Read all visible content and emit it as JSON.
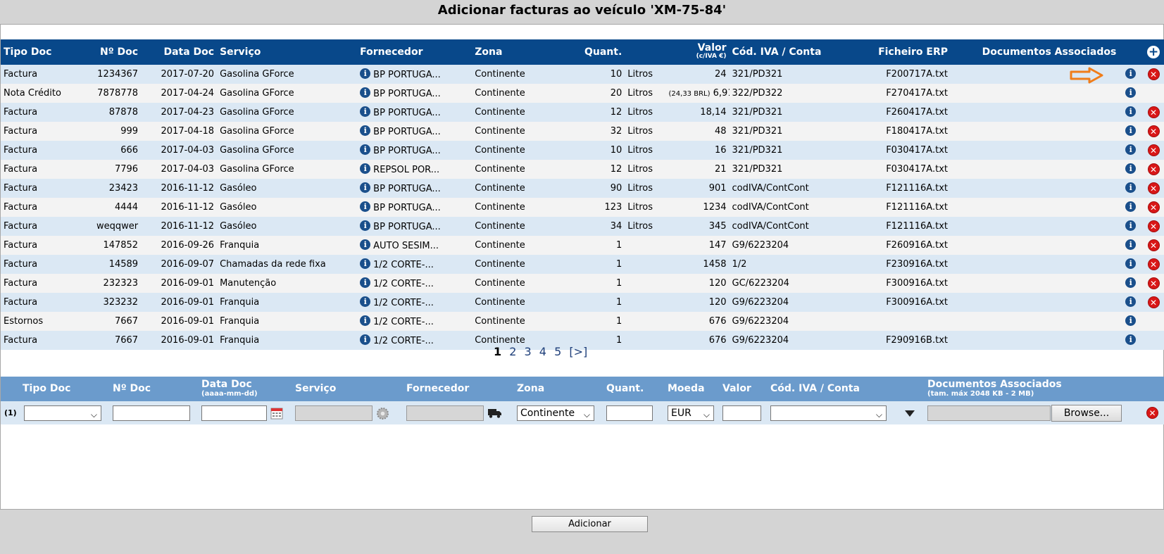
{
  "title": "Adicionar facturas ao veículo 'XM-75-84'",
  "colors": {
    "header": "#08488a",
    "row_odd": "#dbe8f4",
    "row_even": "#f3f3f3",
    "form_header": "#6b9bcc",
    "delete": "#d91717",
    "arrow": "#f07d1a"
  },
  "list_headers": {
    "tipo": "Tipo Doc",
    "ndoc": "Nº Doc",
    "data": "Data Doc",
    "servico": "Serviço",
    "fornecedor": "Fornecedor",
    "zona": "Zona",
    "quant": "Quant.",
    "valor": "Valor",
    "valor_sub": "(c/IVA €)",
    "iva": "Cód. IVA / Conta",
    "erp": "Ficheiro ERP",
    "docs": "Documentos Associados"
  },
  "rows": [
    {
      "tipo": "Factura",
      "ndoc": "1234367",
      "data": "2017-07-20",
      "servico": "Gasolina GForce",
      "fornecedor": "BP PORTUGA...",
      "zona": "Continente",
      "quant": "10",
      "unidade": "Litros",
      "valor_note": "",
      "valor": "24",
      "iva": "321/PD321",
      "erp": "F200717A.txt",
      "delete": true
    },
    {
      "tipo": "Nota Crédito",
      "ndoc": "7878778",
      "data": "2017-04-24",
      "servico": "Gasolina GForce",
      "fornecedor": "BP PORTUGA...",
      "zona": "Continente",
      "quant": "20",
      "unidade": "Litros",
      "valor_note": "(24,33 BRL)",
      "valor": "6,91",
      "iva": "322/PD322",
      "erp": "F270417A.txt",
      "delete": false
    },
    {
      "tipo": "Factura",
      "ndoc": "87878",
      "data": "2017-04-23",
      "servico": "Gasolina GForce",
      "fornecedor": "BP PORTUGA...",
      "zona": "Continente",
      "quant": "12",
      "unidade": "Litros",
      "valor_note": "",
      "valor": "18,14",
      "iva": "321/PD321",
      "erp": "F260417A.txt",
      "delete": true
    },
    {
      "tipo": "Factura",
      "ndoc": "999",
      "data": "2017-04-18",
      "servico": "Gasolina GForce",
      "fornecedor": "BP PORTUGA...",
      "zona": "Continente",
      "quant": "32",
      "unidade": "Litros",
      "valor_note": "",
      "valor": "48",
      "iva": "321/PD321",
      "erp": "F180417A.txt",
      "delete": true
    },
    {
      "tipo": "Factura",
      "ndoc": "666",
      "data": "2017-04-03",
      "servico": "Gasolina GForce",
      "fornecedor": "BP PORTUGA...",
      "zona": "Continente",
      "quant": "10",
      "unidade": "Litros",
      "valor_note": "",
      "valor": "16",
      "iva": "321/PD321",
      "erp": "F030417A.txt",
      "delete": true
    },
    {
      "tipo": "Factura",
      "ndoc": "7796",
      "data": "2017-04-03",
      "servico": "Gasolina GForce",
      "fornecedor": "REPSOL POR...",
      "zona": "Continente",
      "quant": "12",
      "unidade": "Litros",
      "valor_note": "",
      "valor": "21",
      "iva": "321/PD321",
      "erp": "F030417A.txt",
      "delete": true
    },
    {
      "tipo": "Factura",
      "ndoc": "23423",
      "data": "2016-11-12",
      "servico": "Gasóleo",
      "fornecedor": "BP PORTUGA...",
      "zona": "Continente",
      "quant": "90",
      "unidade": "Litros",
      "valor_note": "",
      "valor": "901",
      "iva": "codIVA/ContCont",
      "erp": "F121116A.txt",
      "delete": true
    },
    {
      "tipo": "Factura",
      "ndoc": "4444",
      "data": "2016-11-12",
      "servico": "Gasóleo",
      "fornecedor": "BP PORTUGA...",
      "zona": "Continente",
      "quant": "123",
      "unidade": "Litros",
      "valor_note": "",
      "valor": "1234",
      "iva": "codIVA/ContCont",
      "erp": "F121116A.txt",
      "delete": true
    },
    {
      "tipo": "Factura",
      "ndoc": "weqqwer",
      "data": "2016-11-12",
      "servico": "Gasóleo",
      "fornecedor": "BP PORTUGA...",
      "zona": "Continente",
      "quant": "34",
      "unidade": "Litros",
      "valor_note": "",
      "valor": "345",
      "iva": "codIVA/ContCont",
      "erp": "F121116A.txt",
      "delete": true
    },
    {
      "tipo": "Factura",
      "ndoc": "147852",
      "data": "2016-09-26",
      "servico": "Franquia",
      "fornecedor": "AUTO SESIM...",
      "zona": "Continente",
      "quant": "1",
      "unidade": "",
      "valor_note": "",
      "valor": "147",
      "iva": "G9/6223204",
      "erp": "F260916A.txt",
      "delete": true
    },
    {
      "tipo": "Factura",
      "ndoc": "14589",
      "data": "2016-09-07",
      "servico": "Chamadas da rede fixa",
      "fornecedor": "1/2 CORTE-...",
      "zona": "Continente",
      "quant": "1",
      "unidade": "",
      "valor_note": "",
      "valor": "1458",
      "iva": "1/2",
      "erp": "F230916A.txt",
      "delete": true
    },
    {
      "tipo": "Factura",
      "ndoc": "232323",
      "data": "2016-09-01",
      "servico": "Manutenção",
      "fornecedor": "1/2 CORTE-...",
      "zona": "Continente",
      "quant": "1",
      "unidade": "",
      "valor_note": "",
      "valor": "120",
      "iva": "GC/6223204",
      "erp": "F300916A.txt",
      "delete": true
    },
    {
      "tipo": "Factura",
      "ndoc": "323232",
      "data": "2016-09-01",
      "servico": "Franquia",
      "fornecedor": "1/2 CORTE-...",
      "zona": "Continente",
      "quant": "1",
      "unidade": "",
      "valor_note": "",
      "valor": "120",
      "iva": "G9/6223204",
      "erp": "F300916A.txt",
      "delete": true
    },
    {
      "tipo": "Estornos",
      "ndoc": "7667",
      "data": "2016-09-01",
      "servico": "Franquia",
      "fornecedor": "1/2 CORTE-...",
      "zona": "Continente",
      "quant": "1",
      "unidade": "",
      "valor_note": "",
      "valor": "676",
      "iva": "G9/6223204",
      "erp": "",
      "delete": false
    },
    {
      "tipo": "Factura",
      "ndoc": "7667",
      "data": "2016-09-01",
      "servico": "Franquia",
      "fornecedor": "1/2 CORTE-...",
      "zona": "Continente",
      "quant": "1",
      "unidade": "",
      "valor_note": "",
      "valor": "676",
      "iva": "G9/6223204",
      "erp": "F290916B.txt",
      "delete": false
    }
  ],
  "pagination": {
    "current": "1",
    "pages": [
      "2",
      "3",
      "4",
      "5"
    ],
    "next": "[>]"
  },
  "form_headers": {
    "tipo": "Tipo Doc",
    "ndoc": "Nº Doc",
    "data": "Data Doc",
    "data_sub": "(aaaa-mm-dd)",
    "servico": "Serviço",
    "fornecedor": "Fornecedor",
    "zona": "Zona",
    "quant": "Quant.",
    "moeda": "Moeda",
    "valor": "Valor",
    "iva": "Cód. IVA / Conta",
    "docs": "Documentos Associados",
    "docs_sub": "(tam. máx 2048 KB - 2 MB)"
  },
  "form_row": {
    "label": "(1)",
    "zona_value": "Continente",
    "moeda_value": "EUR",
    "browse_label": "Browse..."
  },
  "submit_label": "Adicionar"
}
